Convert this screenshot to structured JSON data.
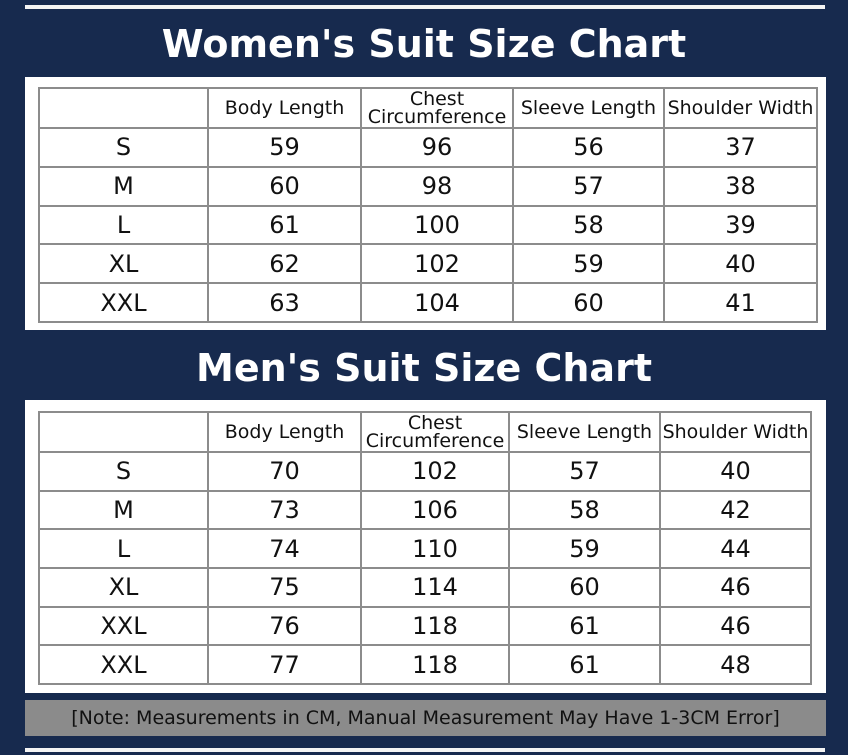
{
  "women": {
    "title": "Women's Suit Size Chart",
    "header": [
      "Body Length",
      "Chest Circumference",
      "Sleeve Length",
      "Shoulder Width"
    ],
    "rows": [
      [
        "S",
        59,
        96,
        56,
        37
      ],
      [
        "M",
        60,
        98,
        57,
        38
      ],
      [
        "L",
        61,
        100,
        58,
        39
      ],
      [
        "XL",
        62,
        102,
        59,
        40
      ],
      [
        "XXL",
        63,
        104,
        60,
        41
      ]
    ]
  },
  "men": {
    "title": "Men's Suit Size Chart",
    "header": [
      "Body Length",
      "Chest Circumference",
      "Sleeve Length",
      "Shoulder Width"
    ],
    "rows": [
      [
        "S",
        70,
        102,
        57,
        40
      ],
      [
        "M",
        73,
        106,
        58,
        42
      ],
      [
        "L",
        74,
        110,
        59,
        44
      ],
      [
        "XL",
        75,
        114,
        60,
        46
      ],
      [
        "XXL",
        76,
        118,
        61,
        46
      ],
      [
        "XXL",
        77,
        118,
        61,
        48
      ]
    ]
  },
  "note": "[Note: Measurements in CM, Manual Measurement May Have 1-3CM Error]"
}
